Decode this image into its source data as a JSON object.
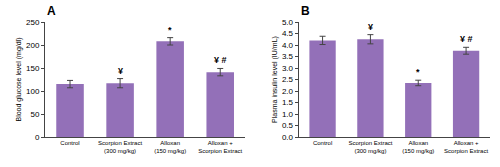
{
  "chart_data": [
    {
      "type": "bar",
      "title": "A",
      "categories": [
        "Control",
        "Scorpion Extract\n(300 mg/kg)",
        "Alloxan\n(150 mg/kg)",
        "Alloxan +\nScorpion Extract"
      ],
      "values": [
        115,
        117,
        208,
        141
      ],
      "errors": [
        8,
        10,
        8,
        8
      ],
      "annotations": [
        null,
        "¥",
        "*",
        "¥ #"
      ],
      "ylabel": "Blood glucose level (mg/dl)",
      "color": "#9370B8",
      "ylim": [
        0,
        250
      ],
      "yticks": [
        0,
        50,
        100,
        150,
        200,
        250
      ],
      "grid": false
    },
    {
      "type": "bar",
      "title": "B",
      "categories": [
        "Control",
        "Scorpion Extract\n(300 mg/kg)",
        "Alloxan\n(150 mg/kg)",
        "Alloxan +\nScorpion Extract"
      ],
      "values": [
        4.2,
        4.25,
        2.35,
        3.75
      ],
      "errors": [
        0.18,
        0.2,
        0.12,
        0.15
      ],
      "annotations": [
        null,
        "¥",
        "*",
        "¥ #"
      ],
      "ylabel": "Plasma insulin level (IU/mL)",
      "color": "#9370B8",
      "ylim": [
        0,
        5
      ],
      "yticks": [
        {
          "value": 0,
          "label": "0.0"
        },
        0.5,
        {
          "value": 1,
          "label": "1.0"
        },
        1.5,
        {
          "value": 2,
          "label": "2.0"
        },
        2.5,
        {
          "value": 3,
          "label": "3.0"
        },
        3.5,
        {
          "value": 4,
          "label": "4.0"
        },
        4.5,
        {
          "value": 5,
          "label": "5.0"
        }
      ],
      "grid": false
    }
  ]
}
